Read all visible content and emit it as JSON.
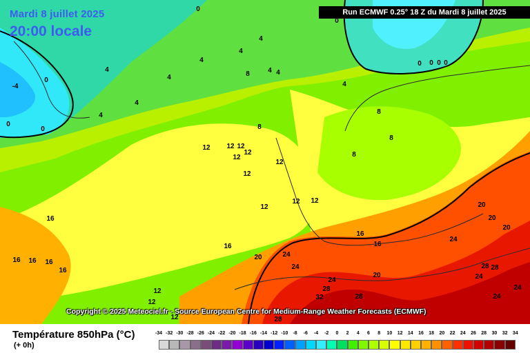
{
  "header": {
    "date": "Mardi 8 juillet 2025",
    "time": "20:00 locale",
    "run_info": "Run ECMWF 0.25° 18 Z du Mardi 8 juillet 2025"
  },
  "copyright": "Copyright © 2025 Meteociel.fr - Source European Centre for Medium-Range Weather Forecasts (ECMWF)",
  "footer": {
    "title": "Température 850hPa (°C)",
    "subtitle": "(+ 0h)"
  },
  "legend": {
    "values": [
      "-34",
      "-32",
      "-30",
      "-28",
      "-26",
      "-24",
      "-22",
      "-20",
      "-18",
      "-16",
      "-14",
      "-12",
      "-10",
      "-8",
      "-6",
      "-4",
      "-2",
      "0",
      "2",
      "4",
      "6",
      "8",
      "10",
      "12",
      "14",
      "16",
      "18",
      "20",
      "22",
      "24",
      "26",
      "28",
      "30",
      "32",
      "34"
    ],
    "colors": [
      "#d8d8d8",
      "#b8b8b8",
      "#a698a6",
      "#8a6f8a",
      "#784e78",
      "#6b2e82",
      "#7a1aa8",
      "#9400d3",
      "#5a00c8",
      "#2800c0",
      "#0000d0",
      "#0020ff",
      "#0060ff",
      "#00a0ff",
      "#00d8ff",
      "#30f0ff",
      "#00ffb0",
      "#00e060",
      "#40f000",
      "#80f800",
      "#b0ff00",
      "#d8ff00",
      "#ffff00",
      "#ffe800",
      "#ffd000",
      "#ffb000",
      "#ff9000",
      "#ff6000",
      "#ff3000",
      "#ee1000",
      "#d40000",
      "#b00000",
      "#8a0000",
      "#640000"
    ]
  },
  "map_labels": [
    "0",
    "0",
    "0",
    "-4",
    "0",
    "0",
    "0",
    "4",
    "4",
    "4",
    "4",
    "4",
    "4",
    "4",
    "8",
    "4",
    "4",
    "4",
    "0",
    "0",
    "0",
    "8",
    "8",
    "8",
    "12",
    "12",
    "12",
    "12",
    "12",
    "12",
    "12",
    "8",
    "12",
    "12",
    "12",
    "16",
    "16",
    "16",
    "16",
    "16",
    "16",
    "16",
    "16",
    "20",
    "24",
    "24",
    "24",
    "28",
    "28",
    "32",
    "28",
    "20",
    "20",
    "20",
    "20",
    "24",
    "28",
    "28",
    "24",
    "24",
    "24",
    "12",
    "12",
    "12"
  ]
}
